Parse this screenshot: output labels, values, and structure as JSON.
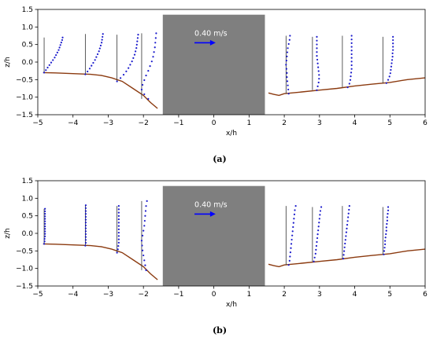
{
  "chart_data": [
    {
      "type": "scatter",
      "caption": "(a)",
      "xlabel": "x/h",
      "ylabel": "z/h",
      "xlim": [
        -5,
        6
      ],
      "ylim": [
        -1.5,
        1.5
      ],
      "xticks": [
        "−5",
        "−4",
        "−3",
        "−2",
        "−1",
        "0",
        "1",
        "2",
        "3",
        "4",
        "5",
        "6"
      ],
      "yticks": [
        "−1.5",
        "−1.0",
        "−0.5",
        "0.0",
        "0.5",
        "1.0",
        "1.5"
      ],
      "arrow_label": "0.40 m/s",
      "colors": {
        "bed": "#8b3a0f",
        "profile": "#1a1acc",
        "obstacle": "#7f7f7f",
        "arrow": "#0000ff"
      },
      "obstacle": {
        "x": [
          -1.45,
          1.45
        ],
        "z": [
          -1.5,
          1.35
        ]
      },
      "bed_left": [
        [
          -4.85,
          -0.3
        ],
        [
          -4.5,
          -0.31
        ],
        [
          -4.0,
          -0.33
        ],
        [
          -3.5,
          -0.35
        ],
        [
          -3.2,
          -0.38
        ],
        [
          -2.9,
          -0.45
        ],
        [
          -2.6,
          -0.55
        ],
        [
          -2.3,
          -0.75
        ],
        [
          -2.0,
          -0.95
        ],
        [
          -1.8,
          -1.15
        ],
        [
          -1.6,
          -1.32
        ]
      ],
      "bed_right": [
        [
          1.55,
          -0.88
        ],
        [
          1.7,
          -0.92
        ],
        [
          1.85,
          -0.95
        ],
        [
          2.0,
          -0.9
        ],
        [
          2.5,
          -0.85
        ],
        [
          3.0,
          -0.8
        ],
        [
          3.5,
          -0.75
        ],
        [
          4.0,
          -0.68
        ],
        [
          4.5,
          -0.63
        ],
        [
          5.0,
          -0.58
        ],
        [
          5.5,
          -0.5
        ],
        [
          6.0,
          -0.45
        ]
      ],
      "profiles": [
        {
          "x0": -4.82,
          "bed": -0.3,
          "top": 0.7,
          "u": [
            0.0,
            0.04,
            0.08,
            0.12,
            0.16,
            0.2,
            0.24,
            0.27,
            0.3,
            0.33,
            0.35,
            0.37,
            0.39,
            0.41,
            0.42
          ]
        },
        {
          "x0": -3.65,
          "bed": -0.35,
          "top": 0.8,
          "u": [
            0.0,
            0.05,
            0.1,
            0.14,
            0.18,
            0.22,
            0.25,
            0.28,
            0.31,
            0.33,
            0.35,
            0.37,
            0.38,
            0.39,
            0.4
          ]
        },
        {
          "x0": -2.75,
          "bed": -0.55,
          "top": 0.78,
          "u": [
            0.0,
            0.08,
            0.15,
            0.21,
            0.26,
            0.3,
            0.34,
            0.37,
            0.4,
            0.42,
            0.44,
            0.45,
            0.46,
            0.47,
            0.48
          ]
        },
        {
          "x0": -2.05,
          "bed": -1.05,
          "top": 0.82,
          "u": [
            0.15,
            0.06,
            0.0,
            0.02,
            0.06,
            0.1,
            0.15,
            0.19,
            0.23,
            0.26,
            0.28,
            0.3,
            0.31,
            0.32,
            0.33
          ]
        },
        {
          "x0": 2.05,
          "bed": -0.9,
          "top": 0.75,
          "u": [
            0.06,
            0.05,
            0.04,
            0.03,
            0.02,
            0.02,
            0.01,
            0.0,
            0.01,
            0.02,
            0.03,
            0.04,
            0.06,
            0.08,
            0.09
          ]
        },
        {
          "x0": 2.8,
          "bed": -0.8,
          "top": 0.72,
          "u": [
            0.1,
            0.12,
            0.14,
            0.15,
            0.15,
            0.14,
            0.13,
            0.12,
            0.11,
            0.1,
            0.1,
            0.1,
            0.1,
            0.1,
            0.1
          ]
        },
        {
          "x0": 3.65,
          "bed": -0.72,
          "top": 0.75,
          "u": [
            0.12,
            0.16,
            0.18,
            0.19,
            0.2,
            0.21,
            0.21,
            0.21,
            0.21,
            0.21,
            0.21,
            0.21,
            0.21,
            0.21,
            0.21
          ]
        },
        {
          "x0": 4.8,
          "bed": -0.6,
          "top": 0.72,
          "u": [
            0.08,
            0.12,
            0.15,
            0.17,
            0.18,
            0.19,
            0.2,
            0.21,
            0.22,
            0.22,
            0.23,
            0.23,
            0.23,
            0.23,
            0.23
          ]
        }
      ]
    },
    {
      "type": "scatter",
      "caption": "(b)",
      "xlabel": "x/h",
      "ylabel": "z/h",
      "xlim": [
        -5,
        6
      ],
      "ylim": [
        -1.5,
        1.5
      ],
      "xticks": [
        "−5",
        "−4",
        "−3",
        "−2",
        "−1",
        "0",
        "1",
        "2",
        "3",
        "4",
        "5",
        "6"
      ],
      "yticks": [
        "−1.5",
        "−1.0",
        "−0.5",
        "0.0",
        "0.5",
        "1.0",
        "1.5"
      ],
      "arrow_label": "0.40 m/s",
      "colors": {
        "bed": "#8b3a0f",
        "profile": "#1a1acc",
        "obstacle": "#7f7f7f",
        "arrow": "#0000ff"
      },
      "obstacle": {
        "x": [
          -1.45,
          1.45
        ],
        "z": [
          -1.5,
          1.35
        ]
      },
      "bed_left": [
        [
          -4.85,
          -0.3
        ],
        [
          -4.5,
          -0.31
        ],
        [
          -4.0,
          -0.33
        ],
        [
          -3.5,
          -0.35
        ],
        [
          -3.2,
          -0.38
        ],
        [
          -2.9,
          -0.45
        ],
        [
          -2.6,
          -0.55
        ],
        [
          -2.3,
          -0.75
        ],
        [
          -2.0,
          -0.95
        ],
        [
          -1.8,
          -1.15
        ],
        [
          -1.6,
          -1.32
        ]
      ],
      "bed_right": [
        [
          1.55,
          -0.88
        ],
        [
          1.7,
          -0.92
        ],
        [
          1.85,
          -0.95
        ],
        [
          2.0,
          -0.9
        ],
        [
          2.5,
          -0.85
        ],
        [
          3.0,
          -0.8
        ],
        [
          3.5,
          -0.75
        ],
        [
          4.0,
          -0.68
        ],
        [
          4.5,
          -0.63
        ],
        [
          5.0,
          -0.58
        ],
        [
          5.5,
          -0.5
        ],
        [
          6.0,
          -0.45
        ]
      ],
      "profiles": [
        {
          "x0": -4.82,
          "bed": -0.3,
          "top": 0.7,
          "u": [
            0.0,
            0.01,
            0.01,
            0.02,
            0.02,
            0.02,
            0.02,
            0.02,
            0.02,
            0.02,
            0.02,
            0.02,
            0.02,
            0.02,
            0.02
          ]
        },
        {
          "x0": -3.65,
          "bed": -0.35,
          "top": 0.8,
          "u": [
            0.0,
            0.01,
            0.01,
            0.01,
            0.01,
            0.01,
            0.01,
            0.01,
            0.01,
            0.01,
            0.01,
            0.01,
            0.01,
            0.01,
            0.01
          ]
        },
        {
          "x0": -2.75,
          "bed": -0.55,
          "top": 0.78,
          "u": [
            0.0,
            0.02,
            0.03,
            0.04,
            0.04,
            0.04,
            0.04,
            0.04,
            0.04,
            0.04,
            0.04,
            0.04,
            0.04,
            0.04,
            0.04
          ]
        },
        {
          "x0": -2.05,
          "bed": -1.05,
          "top": 0.92,
          "u": [
            0.1,
            0.08,
            0.06,
            0.04,
            0.02,
            0.01,
            0.0,
            0.02,
            0.04,
            0.06,
            0.07,
            0.08,
            0.09,
            0.1,
            0.12
          ]
        },
        {
          "x0": 2.05,
          "bed": -0.9,
          "top": 0.78,
          "u": [
            0.06,
            0.08,
            0.09,
            0.1,
            0.11,
            0.12,
            0.13,
            0.14,
            0.15,
            0.16,
            0.17,
            0.18,
            0.19,
            0.2,
            0.22
          ]
        },
        {
          "x0": 2.8,
          "bed": -0.8,
          "top": 0.75,
          "u": [
            0.03,
            0.05,
            0.07,
            0.08,
            0.09,
            0.1,
            0.11,
            0.12,
            0.13,
            0.14,
            0.15,
            0.16,
            0.17,
            0.18,
            0.2
          ]
        },
        {
          "x0": 3.65,
          "bed": -0.72,
          "top": 0.78,
          "u": [
            0.02,
            0.03,
            0.04,
            0.05,
            0.06,
            0.07,
            0.08,
            0.09,
            0.1,
            0.11,
            0.12,
            0.13,
            0.14,
            0.15,
            0.16
          ]
        },
        {
          "x0": 4.8,
          "bed": -0.6,
          "top": 0.75,
          "u": [
            0.02,
            0.03,
            0.04,
            0.05,
            0.05,
            0.06,
            0.07,
            0.08,
            0.08,
            0.09,
            0.1,
            0.1,
            0.11,
            0.12,
            0.12
          ]
        }
      ]
    }
  ]
}
